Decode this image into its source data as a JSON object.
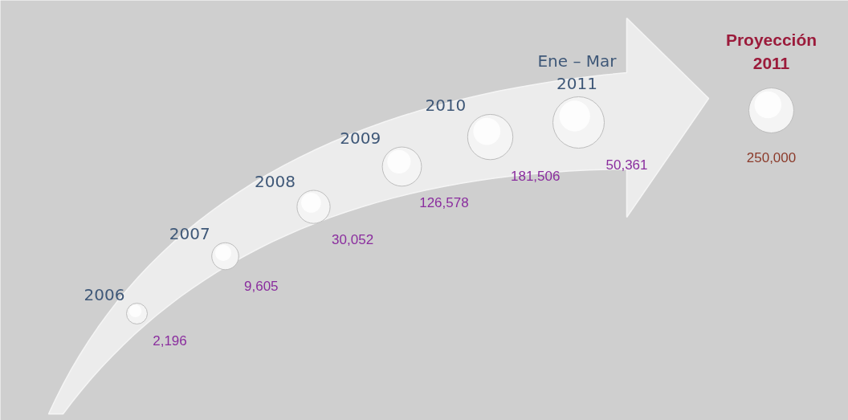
{
  "chart_data": {
    "type": "other",
    "categories": [
      "2006",
      "2007",
      "2008",
      "2009",
      "2010",
      "Ene – Mar\n2011",
      "Proyección\n2011"
    ],
    "values": [
      2196,
      9605,
      30052,
      126578,
      181506,
      50361,
      250000
    ],
    "value_labels": [
      "2,196",
      "9,605",
      "30,052",
      "126,578",
      "181,506",
      "50,361",
      "250,000"
    ],
    "colors": [
      "#8a2d9e",
      "#8a2d9e",
      "#8a2d9e",
      "#8a2d9e",
      "#8a2d9e",
      "#8a2d9e",
      "#8b3a2a"
    ]
  }
}
